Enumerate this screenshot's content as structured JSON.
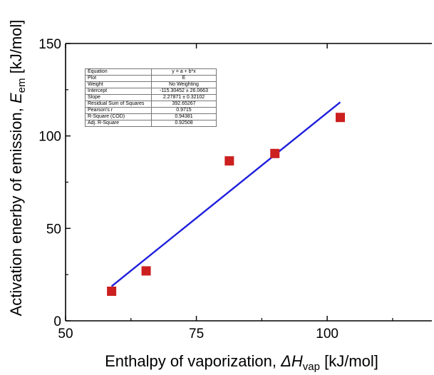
{
  "chart_data": {
    "type": "scatter",
    "xlabel": {
      "main": "Enthalpy of vaporization, ",
      "sym": "ΔH",
      "sub": "vap",
      "unit": " [kJ/mol]"
    },
    "ylabel": {
      "main": "Activation enerby of emission, ",
      "sym": "E",
      "sub": "em",
      "unit": " [kJ/mol]"
    },
    "xlim": [
      50,
      120
    ],
    "ylim": [
      0,
      150
    ],
    "x_ticks": [
      "50",
      "75",
      "100"
    ],
    "x_tick_values": [
      50,
      75,
      100
    ],
    "y_ticks": [
      "0",
      "50",
      "100",
      "150"
    ],
    "y_tick_values": [
      0,
      50,
      100,
      150
    ],
    "grid": false,
    "series": [
      {
        "kind": "points",
        "marker": "square",
        "color": "#cc1f1f",
        "x": [
          58.8,
          65.4,
          81.3,
          90.0,
          102.5
        ],
        "y": [
          16.0,
          27.0,
          86.5,
          90.5,
          110.0
        ]
      },
      {
        "kind": "fit-line",
        "color": "#1f1fdd",
        "intercept": -115.30452,
        "slope": 2.27871,
        "x_range": [
          58.8,
          102.5
        ]
      }
    ],
    "fit_table": {
      "rows": [
        [
          "Equation",
          "y = a + b*x"
        ],
        [
          "Plot",
          "E"
        ],
        [
          "Weight",
          "No Weighting"
        ],
        [
          "Intercept",
          "-115.30452 ± 26.0663"
        ],
        [
          "Slope",
          "2.27871 ± 0.32102"
        ],
        [
          "Residual Sum of Squares",
          "392.65267"
        ],
        [
          "Pearson's r",
          "0.9715"
        ],
        [
          "R-Square (COD)",
          "0.94381"
        ],
        [
          "Adj. R-Square",
          "0.92508"
        ]
      ]
    }
  }
}
